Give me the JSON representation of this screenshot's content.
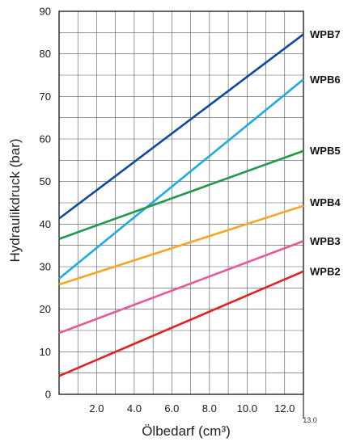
{
  "chart_data": {
    "type": "line",
    "title": "",
    "xlabel": "Ölbedarf (cm³)",
    "ylabel": "Hydraulikdruck (bar)",
    "xlim": [
      0,
      13.0
    ],
    "ylim": [
      0,
      90
    ],
    "x_ticks": [
      "2.0",
      "4.0",
      "6.0",
      "8.0",
      "10.0",
      "12.0"
    ],
    "x_end_label": "13.0",
    "y_ticks": [
      "0",
      "10",
      "20",
      "30",
      "40",
      "50",
      "60",
      "70",
      "80",
      "90"
    ],
    "grid": true,
    "x_grid_step": 1.0,
    "y_grid_step": 5,
    "series": [
      {
        "name": "WPB7",
        "color": "#0d4a9e",
        "x": [
          0,
          13.0
        ],
        "y": [
          41.3,
          84.6
        ]
      },
      {
        "name": "WPB6",
        "color": "#1aace2",
        "x": [
          0,
          13.0
        ],
        "y": [
          27.2,
          74.0
        ]
      },
      {
        "name": "WPB5",
        "color": "#1e9a49",
        "x": [
          0,
          13.0
        ],
        "y": [
          36.5,
          57.2
        ]
      },
      {
        "name": "WPB4",
        "color": "#f5a623",
        "x": [
          0,
          13.0
        ],
        "y": [
          25.8,
          44.3
        ]
      },
      {
        "name": "WPB3",
        "color": "#e8589a",
        "x": [
          0,
          13.0
        ],
        "y": [
          14.4,
          36.0
        ]
      },
      {
        "name": "WPB2",
        "color": "#e02222",
        "x": [
          0,
          13.0
        ],
        "y": [
          4.3,
          28.9
        ]
      }
    ]
  }
}
